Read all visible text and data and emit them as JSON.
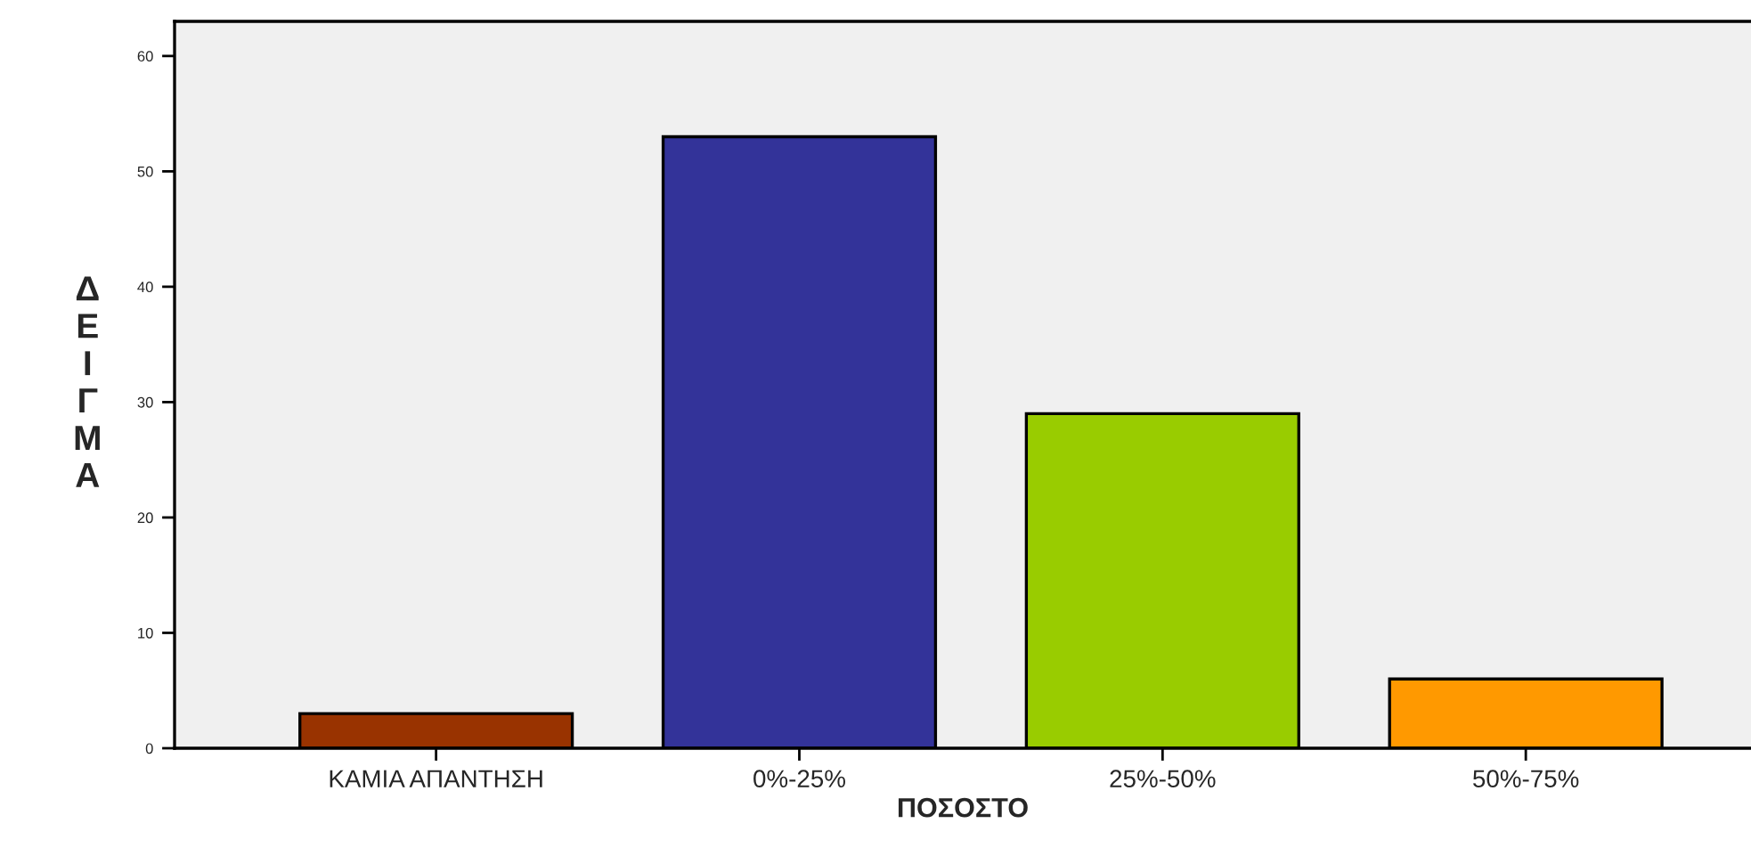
{
  "chart_data": {
    "type": "bar",
    "categories": [
      "ΚΑΜΙΑ ΑΠΑΝΤΗΣΗ",
      "0%-25%",
      "25%-50%",
      "50%-75%"
    ],
    "values": [
      3,
      53,
      29,
      6
    ],
    "colors": [
      "#993300",
      "#333399",
      "#99cc00",
      "#ff9900"
    ],
    "xlabel": "ΠΟΣΟΣΤΟ",
    "ylabel": "ΔΕΙΓΜΑ",
    "ylim": [
      0,
      63
    ],
    "yticks": [
      0,
      10,
      20,
      30,
      40,
      50,
      60
    ],
    "grid": false,
    "legend": false
  }
}
